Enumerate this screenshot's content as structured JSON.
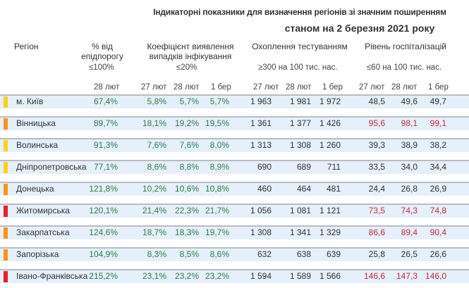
{
  "title": {
    "line1": "Індикаторні показники для визначення регіонів зі значним поширенням",
    "line2": "станом на 2 березня 2021 року"
  },
  "headers": {
    "region": "Регіон",
    "epi": {
      "label1": "% від",
      "label2": "епідпорогу",
      "threshold": "≤100%",
      "dates": [
        "28 лют"
      ]
    },
    "coef": {
      "label1": "Коефіцієнт виявлення",
      "label2": "випадків інфікування",
      "threshold": "≤20%",
      "dates": [
        "27 лют",
        "28 лют",
        "1 бер"
      ]
    },
    "tests": {
      "label1": "Охоплення тестуванням",
      "threshold": "≥300 на 100 тис. нас.",
      "dates": [
        "27 лют",
        "28 лют",
        "1 бер"
      ]
    },
    "hosp": {
      "label1": "Рівень госпіталізацій",
      "threshold": "≤60 на 100 тис. нас.",
      "dates": [
        "27 лют",
        "28 лют",
        "1 бер"
      ]
    }
  },
  "colors": {
    "yellow": "#f7d21e",
    "orange": "#f7941d",
    "red": "#e8202a",
    "good": "#2e7d4a",
    "bad": "#c8283c"
  },
  "rows": [
    {
      "region": "м. Київ",
      "status": "yellow",
      "epi": "67,4%",
      "coef": [
        "5,8%",
        "5,7%",
        "5,7%"
      ],
      "tests": [
        "1 963",
        "1 981",
        "1 972"
      ],
      "hosp": [
        "48,5",
        "49,6",
        "49,7"
      ],
      "hosp_bad": false
    },
    {
      "region": "Вінницька",
      "status": "orange",
      "epi": "89,7%",
      "coef": [
        "18,1%",
        "19,2%",
        "19,5%"
      ],
      "tests": [
        "1 361",
        "1 377",
        "1 426"
      ],
      "hosp": [
        "95,6",
        "98,1",
        "99,1"
      ],
      "hosp_bad": true
    },
    {
      "region": "Волинська",
      "status": "yellow",
      "epi": "91,3%",
      "coef": [
        "7,6%",
        "7,6%",
        "8,0%"
      ],
      "tests": [
        "1 313",
        "1 308",
        "1 260"
      ],
      "hosp": [
        "39,3",
        "38,9",
        "38,2"
      ],
      "hosp_bad": false
    },
    {
      "region": "Дніпропетровська",
      "status": "yellow",
      "epi": "77,1%",
      "coef": [
        "8,6%",
        "8,8%",
        "8,9%"
      ],
      "tests": [
        "690",
        "689",
        "711"
      ],
      "hosp": [
        "33,5",
        "34,0",
        "34,4"
      ],
      "hosp_bad": false
    },
    {
      "region": "Донецька",
      "status": "orange",
      "epi": "121,8%",
      "coef": [
        "10,2%",
        "10,6%",
        "10,8%"
      ],
      "tests": [
        "460",
        "464",
        "481"
      ],
      "hosp": [
        "24,4",
        "26,8",
        "26,9"
      ],
      "hosp_bad": false
    },
    {
      "region": "Житомирська",
      "status": "red",
      "epi": "120,1%",
      "coef": [
        "21,4%",
        "22,3%",
        "21,7%"
      ],
      "tests": [
        "1 056",
        "1 081",
        "1 121"
      ],
      "hosp": [
        "73,5",
        "74,3",
        "74,8"
      ],
      "hosp_bad": true
    },
    {
      "region": "Закарпатська",
      "status": "orange",
      "epi": "124,6%",
      "coef": [
        "18,7%",
        "18,3%",
        "19,7%"
      ],
      "tests": [
        "1 308",
        "1 341",
        "1 329"
      ],
      "hosp": [
        "86,6",
        "89,4",
        "90,4"
      ],
      "hosp_bad": true
    },
    {
      "region": "Запорізька",
      "status": "orange",
      "epi": "104,9%",
      "coef": [
        "8,3%",
        "8,5%",
        "8,6%"
      ],
      "tests": [
        "632",
        "638",
        "639"
      ],
      "hosp": [
        "25,8",
        "26,5",
        "26,6"
      ],
      "hosp_bad": false
    },
    {
      "region": "Івано-Франківська",
      "status": "red",
      "epi": "215,2%",
      "coef": [
        "23,1%",
        "23,2%",
        "23,2%"
      ],
      "tests": [
        "1 594",
        "1 589",
        "1 566"
      ],
      "hosp": [
        "146,6",
        "147,3",
        "146,0"
      ],
      "hosp_bad": true
    }
  ]
}
